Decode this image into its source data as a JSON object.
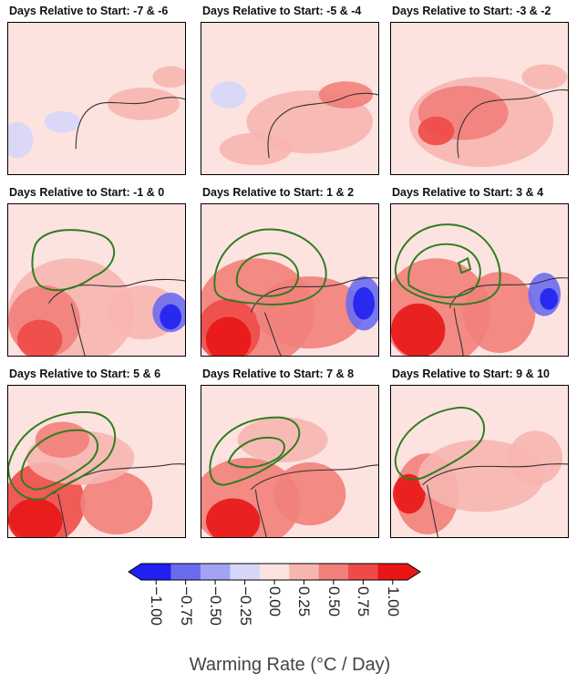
{
  "chart_data": {
    "type": "heatmap",
    "panels": [
      {
        "title": "Days Relative to Start: -7 & -6",
        "contour": false
      },
      {
        "title": "Days Relative to Start: -5 & -4",
        "contour": false
      },
      {
        "title": "Days Relative to Start: -3 & -2",
        "contour": false
      },
      {
        "title": "Days Relative to Start: -1 & 0",
        "contour": true
      },
      {
        "title": "Days Relative to Start: 1 & 2",
        "contour": true
      },
      {
        "title": "Days Relative to Start: 3 & 4",
        "contour": true
      },
      {
        "title": "Days Relative to Start: 5 & 6",
        "contour": true
      },
      {
        "title": "Days Relative to Start: 7 & 8",
        "contour": true
      },
      {
        "title": "Days Relative to Start: 9 & 10",
        "contour": true
      }
    ],
    "colorbar": {
      "label": "Warming Rate (°C / Day)",
      "ticks": [
        "−1.00",
        "−0.75",
        "−0.50",
        "−0.25",
        "0.00",
        "0.25",
        "0.50",
        "0.75",
        "1.00"
      ],
      "levels": [
        -1.0,
        -0.75,
        -0.5,
        -0.25,
        0.0,
        0.25,
        0.5,
        0.75,
        1.0
      ],
      "colors": [
        "#2020f0",
        "#6b6bf0",
        "#a3a3f3",
        "#d6d6f8",
        "#fde3e0",
        "#f7b5b0",
        "#f27f7a",
        "#ee4a48",
        "#e81616"
      ],
      "extend": "both"
    },
    "contour_color": "#2e7d1f",
    "coastline_color": "#333333"
  }
}
